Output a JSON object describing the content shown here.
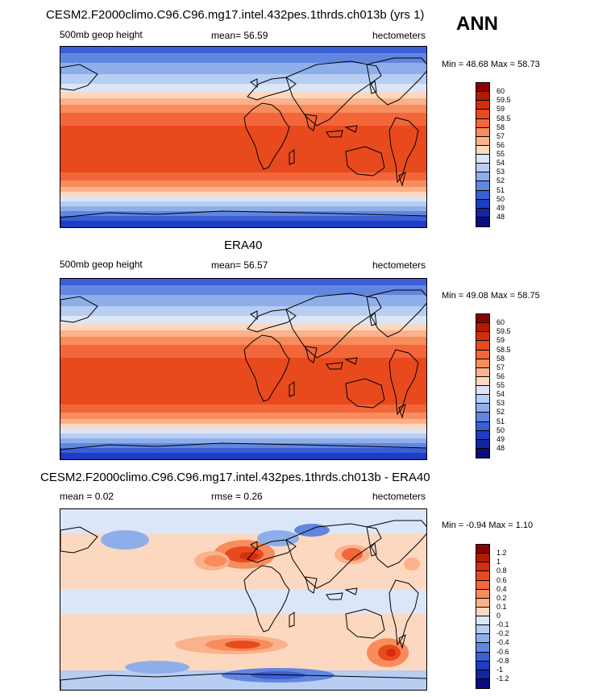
{
  "header": {
    "season": "ANN"
  },
  "panels": [
    {
      "title": "CESM2.F2000climo.C96.C96.mg17.intel.432pes.1thrds.ch013b (yrs 1)",
      "left_label": "500mb geop height",
      "center_label": "mean=  56.59",
      "right_label": "hectometers",
      "minmax": "Min =  48.68 Max =  58.73",
      "colorbar": {
        "labels": [
          "60",
          "59.5",
          "59",
          "58.5",
          "58",
          "57",
          "56",
          "55",
          "54",
          "53",
          "52",
          "51",
          "50",
          "49",
          "48"
        ],
        "colors": [
          "#8b0000",
          "#b31b00",
          "#d42e0c",
          "#e84a1e",
          "#f2663a",
          "#f88c5c",
          "#fbb28c",
          "#fdd8c0",
          "#dbe6f8",
          "#b8cdf2",
          "#8eaeea",
          "#6186e0",
          "#3a5fd6",
          "#1e3cc4",
          "#1226a0",
          "#0a0c80"
        ]
      },
      "map_type": "absolute"
    },
    {
      "title": "ERA40",
      "left_label": "500mb geop height",
      "center_label": "mean=  56.57",
      "right_label": "hectometers",
      "minmax": "Min =  49.08 Max =  58.75",
      "colorbar": {
        "labels": [
          "60",
          "59.5",
          "59",
          "58.5",
          "58",
          "57",
          "56",
          "55",
          "54",
          "53",
          "52",
          "51",
          "50",
          "49",
          "48"
        ],
        "colors": [
          "#8b0000",
          "#b31b00",
          "#d42e0c",
          "#e84a1e",
          "#f2663a",
          "#f88c5c",
          "#fbb28c",
          "#fdd8c0",
          "#dbe6f8",
          "#b8cdf2",
          "#8eaeea",
          "#6186e0",
          "#3a5fd6",
          "#1e3cc4",
          "#1226a0",
          "#0a0c80"
        ]
      },
      "map_type": "absolute"
    },
    {
      "title": "CESM2.F2000climo.C96.C96.mg17.intel.432pes.1thrds.ch013b - ERA40",
      "left_label": "mean =   0.02",
      "center_label": "rmse =   0.26",
      "right_label": "hectometers",
      "minmax": "Min =  -0.94 Max =   1.10",
      "colorbar": {
        "labels": [
          "1.2",
          "1",
          "0.8",
          "0.6",
          "0.4",
          "0.2",
          "0.1",
          "0",
          "-0.1",
          "-0.2",
          "-0.4",
          "-0.6",
          "-0.8",
          "-1",
          "-1.2"
        ],
        "colors": [
          "#8b0000",
          "#b31b00",
          "#d42e0c",
          "#e84a1e",
          "#f2663a",
          "#f88c5c",
          "#fbb28c",
          "#fdd8c0",
          "#dbe6f8",
          "#b8cdf2",
          "#8eaeea",
          "#6186e0",
          "#3a5fd6",
          "#1e3cc4",
          "#1226a0",
          "#0a0c80"
        ]
      },
      "map_type": "difference"
    }
  ]
}
